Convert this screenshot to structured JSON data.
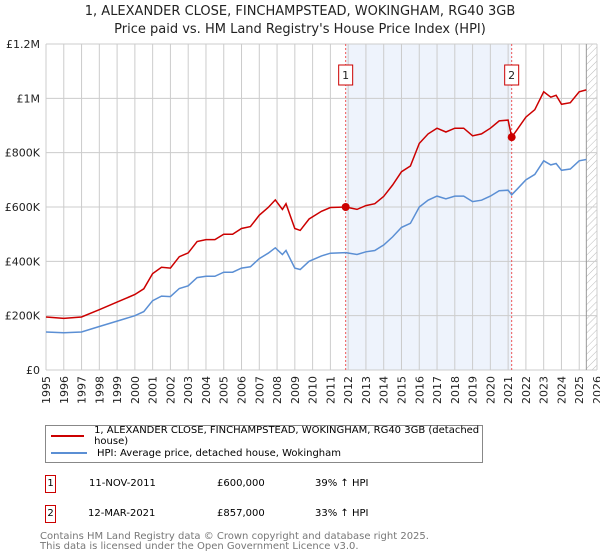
{
  "title": "1, ALEXANDER CLOSE, FINCHAMPSTEAD, WOKINGHAM, RG40 3GB",
  "subtitle": "Price paid vs. HM Land Registry's House Price Index (HPI)",
  "chart_data": {
    "type": "line",
    "xlim": [
      1995,
      2026
    ],
    "ylim": [
      0,
      1200000
    ],
    "y_ticks": [
      {
        "v": 0,
        "label": "£0"
      },
      {
        "v": 200000,
        "label": "£200K"
      },
      {
        "v": 400000,
        "label": "£400K"
      },
      {
        "v": 600000,
        "label": "£600K"
      },
      {
        "v": 800000,
        "label": "£800K"
      },
      {
        "v": 1000000,
        "label": "£1M"
      },
      {
        "v": 1200000,
        "label": "£1.2M"
      }
    ],
    "x_ticks": [
      "1995",
      "1996",
      "1997",
      "1998",
      "1999",
      "2000",
      "2001",
      "2002",
      "2003",
      "2004",
      "2005",
      "2006",
      "2007",
      "2008",
      "2009",
      "2010",
      "2011",
      "2012",
      "2013",
      "2014",
      "2015",
      "2016",
      "2017",
      "2018",
      "2019",
      "2020",
      "2021",
      "2022",
      "2023",
      "2024",
      "2025",
      "2026"
    ],
    "grid": true,
    "forecast_from": 2025.4,
    "series": [
      {
        "name": "1, ALEXANDER CLOSE, FINCHAMPSTEAD, WOKINGHAM, RG40 3GB (detached house)",
        "color": "#cc0000",
        "x": [
          1995,
          1996,
          1997,
          1998,
          1999,
          2000,
          2000.5,
          2001,
          2001.5,
          2002,
          2002.5,
          2003,
          2003.5,
          2004,
          2004.5,
          2005,
          2005.5,
          2006,
          2006.5,
          2007,
          2007.5,
          2007.9,
          2008.3,
          2008.5,
          2009,
          2009.3,
          2009.8,
          2010.5,
          2011,
          2011.86,
          2012.5,
          2013,
          2013.5,
          2014,
          2014.5,
          2015,
          2015.5,
          2016,
          2016.5,
          2017,
          2017.5,
          2018,
          2018.5,
          2019,
          2019.5,
          2020,
          2020.5,
          2021.0,
          2021.2,
          2021.5,
          2022,
          2022.5,
          2023,
          2023.4,
          2023.7,
          2024,
          2024.5,
          2025,
          2025.4
        ],
        "y": [
          195000,
          190000,
          195000,
          222000,
          250000,
          278000,
          299000,
          355000,
          378000,
          375000,
          417000,
          431000,
          473000,
          480000,
          480000,
          500000,
          500000,
          521000,
          528000,
          570000,
          598000,
          626000,
          591000,
          612000,
          521000,
          514000,
          556000,
          584000,
          598000,
          600000,
          591000,
          605000,
          612000,
          639000,
          681000,
          730000,
          751000,
          834000,
          869000,
          890000,
          876000,
          890000,
          890000,
          862000,
          869000,
          890000,
          917000,
          920000,
          857000,
          884000,
          931000,
          958000,
          1024000,
          1004000,
          1011000,
          978000,
          984000,
          1024000,
          1031000
        ]
      },
      {
        "name": "HPI: Average price, detached house, Wokingham",
        "color": "#5b8fd4",
        "x": [
          1995,
          1996,
          1997,
          1998,
          1999,
          2000,
          2000.5,
          2001,
          2001.5,
          2002,
          2002.5,
          2003,
          2003.5,
          2004,
          2004.5,
          2005,
          2005.5,
          2006,
          2006.5,
          2007,
          2007.5,
          2007.9,
          2008.3,
          2008.5,
          2009,
          2009.3,
          2009.8,
          2010.5,
          2011,
          2011.86,
          2012.5,
          2013,
          2013.5,
          2014,
          2014.5,
          2015,
          2015.5,
          2016,
          2016.5,
          2017,
          2017.5,
          2018,
          2018.5,
          2019,
          2019.5,
          2020,
          2020.5,
          2021.0,
          2021.2,
          2021.5,
          2022,
          2022.5,
          2023,
          2023.4,
          2023.7,
          2024,
          2024.5,
          2025,
          2025.4
        ],
        "y": [
          140000,
          137000,
          140000,
          160000,
          180000,
          200000,
          215000,
          255000,
          272000,
          270000,
          300000,
          310000,
          340000,
          345000,
          345000,
          360000,
          360000,
          375000,
          380000,
          410000,
          430000,
          450000,
          425000,
          440000,
          375000,
          370000,
          400000,
          420000,
          430000,
          432000,
          425000,
          435000,
          440000,
          460000,
          490000,
          525000,
          540000,
          600000,
          625000,
          640000,
          630000,
          640000,
          640000,
          620000,
          625000,
          640000,
          660000,
          662000,
          645000,
          665000,
          700000,
          720000,
          770000,
          755000,
          760000,
          735000,
          740000,
          770000,
          775000
        ]
      }
    ],
    "sales": [
      {
        "label": "1",
        "x": 2011.86,
        "price": 600000,
        "date": "11-NOV-2011",
        "price_label": "£600,000",
        "hpi_delta": "39% ↑ HPI"
      },
      {
        "label": "2",
        "x": 2021.2,
        "price": 857000,
        "date": "12-MAR-2021",
        "price_label": "£857,000",
        "hpi_delta": "33% ↑ HPI"
      }
    ]
  },
  "footer": [
    "Contains HM Land Registry data © Crown copyright and database right 2025.",
    "This data is licensed under the Open Government Licence v3.0."
  ]
}
